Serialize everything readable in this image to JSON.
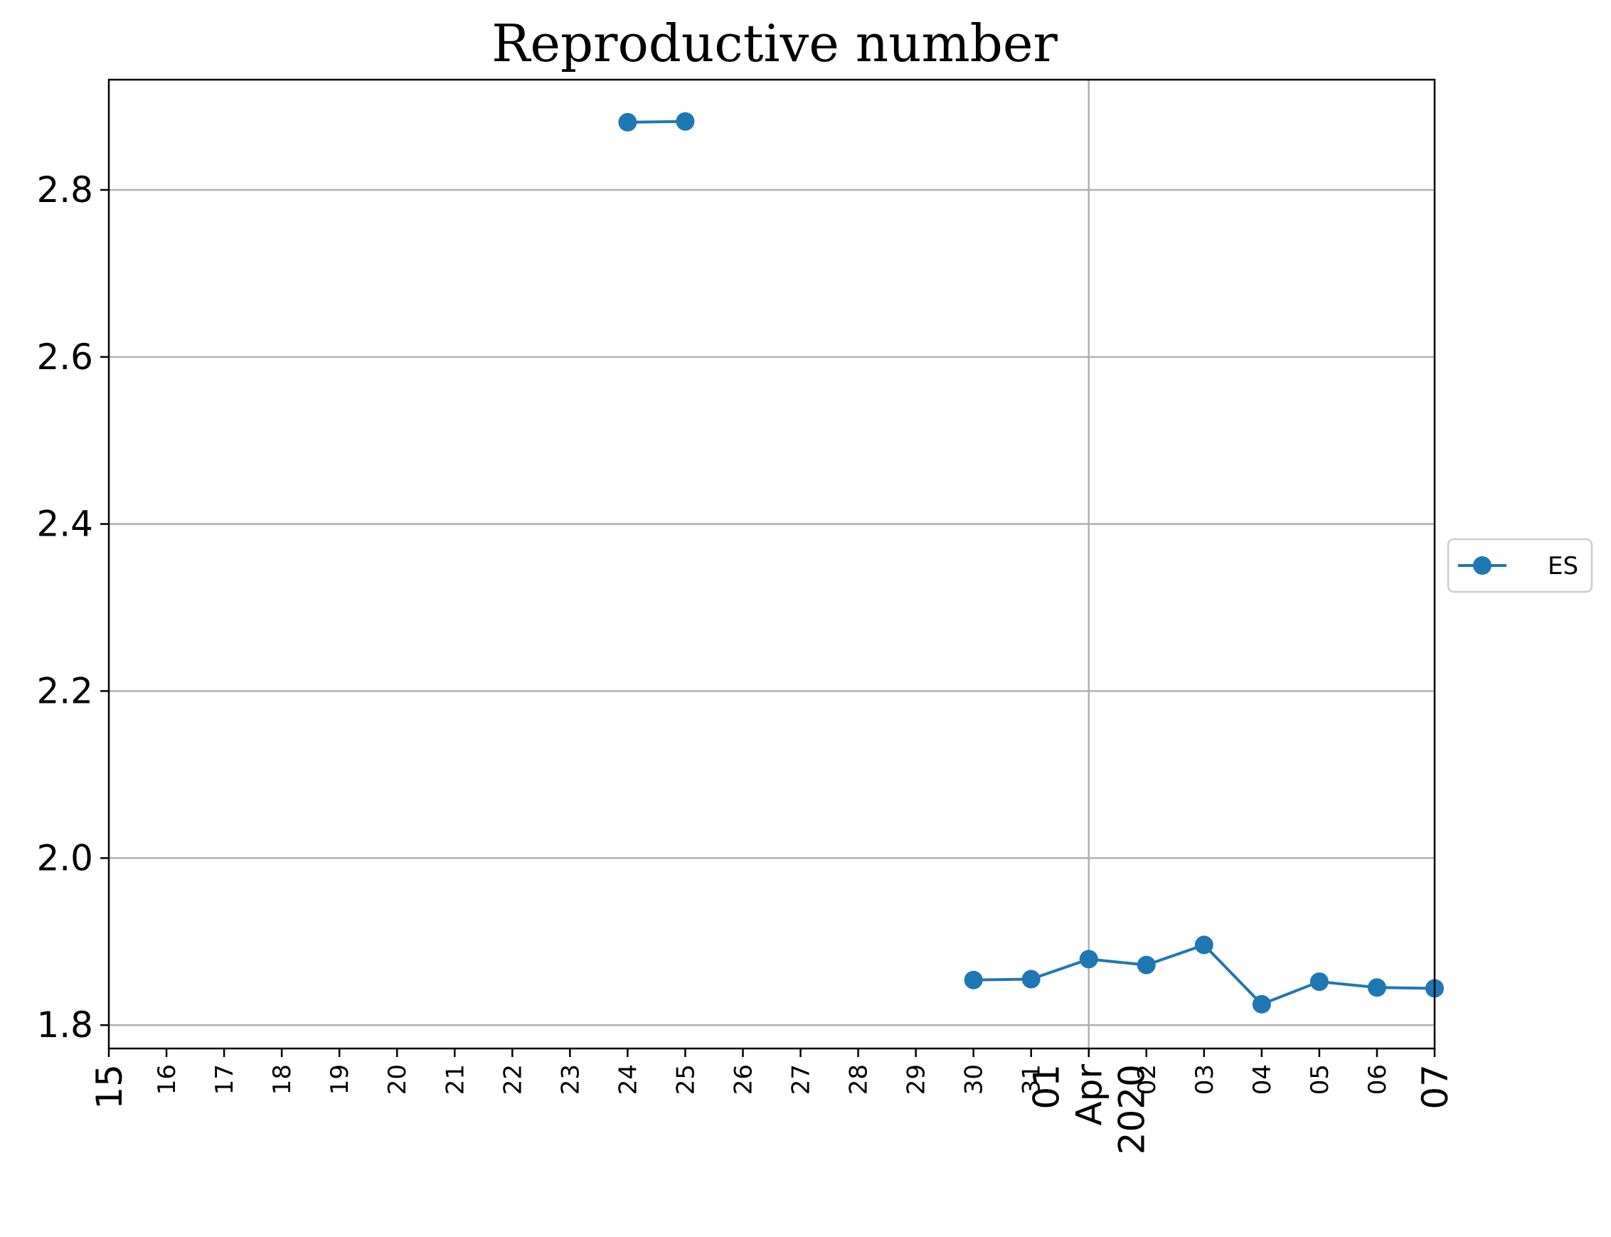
{
  "chart_data": {
    "type": "line",
    "title": "Reproductive number",
    "xlabel": "",
    "ylabel": "",
    "x_axis_type": "date",
    "xlim": [
      "2020-03-15",
      "2020-04-07"
    ],
    "ylim": [
      1.772,
      2.932
    ],
    "y_ticks": [
      1.8,
      2.0,
      2.2,
      2.4,
      2.6,
      2.8
    ],
    "y_tick_labels": [
      "1.8",
      "2.0",
      "2.2",
      "2.4",
      "2.6",
      "2.8"
    ],
    "x_ticks": [
      {
        "date": "2020-03-15",
        "label": "15",
        "size": "big"
      },
      {
        "date": "2020-03-16",
        "label": "16",
        "size": "small"
      },
      {
        "date": "2020-03-17",
        "label": "17",
        "size": "small"
      },
      {
        "date": "2020-03-18",
        "label": "18",
        "size": "small"
      },
      {
        "date": "2020-03-19",
        "label": "19",
        "size": "small"
      },
      {
        "date": "2020-03-20",
        "label": "20",
        "size": "small"
      },
      {
        "date": "2020-03-21",
        "label": "21",
        "size": "small"
      },
      {
        "date": "2020-03-22",
        "label": "22",
        "size": "small"
      },
      {
        "date": "2020-03-23",
        "label": "23",
        "size": "small"
      },
      {
        "date": "2020-03-24",
        "label": "24",
        "size": "small"
      },
      {
        "date": "2020-03-25",
        "label": "25",
        "size": "small"
      },
      {
        "date": "2020-03-26",
        "label": "26",
        "size": "small"
      },
      {
        "date": "2020-03-27",
        "label": "27",
        "size": "small"
      },
      {
        "date": "2020-03-28",
        "label": "28",
        "size": "small"
      },
      {
        "date": "2020-03-29",
        "label": "29",
        "size": "small"
      },
      {
        "date": "2020-03-30",
        "label": "30",
        "size": "small"
      },
      {
        "date": "2020-03-31",
        "label": "31",
        "size": "small"
      },
      {
        "date": "2020-04-01",
        "label": "01\nApr\n2020",
        "size": "big"
      },
      {
        "date": "2020-04-02",
        "label": "02",
        "size": "small"
      },
      {
        "date": "2020-04-03",
        "label": "03",
        "size": "small"
      },
      {
        "date": "2020-04-04",
        "label": "04",
        "size": "small"
      },
      {
        "date": "2020-04-05",
        "label": "05",
        "size": "small"
      },
      {
        "date": "2020-04-06",
        "label": "06",
        "size": "small"
      },
      {
        "date": "2020-04-07",
        "label": "07",
        "size": "big"
      }
    ],
    "grid": true,
    "grid_x_major_only": [
      "2020-04-01"
    ],
    "legend_position": "center-right-outside",
    "series": [
      {
        "name": "ES",
        "color": "#1f77b4",
        "marker": "circle",
        "segments": [
          [
            {
              "x": "2020-03-24",
              "y": 2.881
            },
            {
              "x": "2020-03-25",
              "y": 2.882
            }
          ],
          [
            {
              "x": "2020-03-30",
              "y": 1.854
            },
            {
              "x": "2020-03-31",
              "y": 1.855
            },
            {
              "x": "2020-04-01",
              "y": 1.879
            },
            {
              "x": "2020-04-02",
              "y": 1.872
            },
            {
              "x": "2020-04-03",
              "y": 1.896
            },
            {
              "x": "2020-04-04",
              "y": 1.825
            },
            {
              "x": "2020-04-05",
              "y": 1.852
            },
            {
              "x": "2020-04-06",
              "y": 1.845
            },
            {
              "x": "2020-04-07",
              "y": 1.844
            }
          ]
        ]
      }
    ]
  }
}
